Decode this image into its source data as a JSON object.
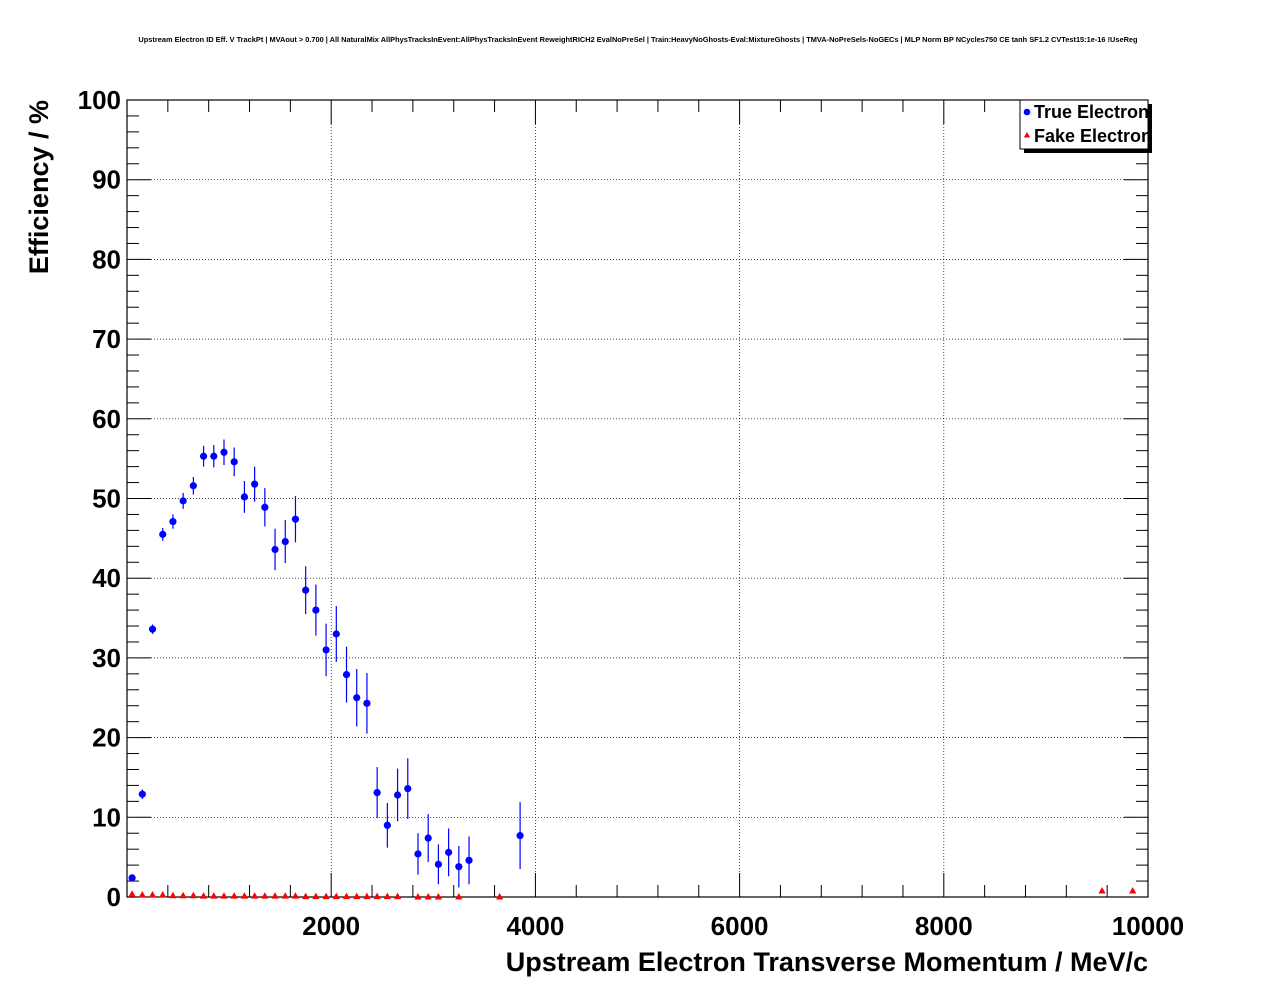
{
  "chart_data": {
    "type": "scatter",
    "title": "Upstream Electron ID Eff. V TrackPt | MVAout > 0.700 | All NaturalMix AllPhysTracksInEvent:AllPhysTracksInEvent ReweightRICH2 EvalNoPreSel | Train:HeavyNoGhosts-Eval:MixtureGhosts | TMVA-NoPreSels-NoGECs | MLP Norm BP NCycles750 CE tanh SF1.2 CVTest15:1e-16 !UseReg",
    "xlabel": "Upstream Electron Transverse Momentum / MeV/c",
    "ylabel": "Efficiency / %",
    "xlim": [
      0,
      10000
    ],
    "ylim": [
      0,
      100
    ],
    "x_tick_labels": [
      "2000",
      "4000",
      "6000",
      "8000",
      "10000"
    ],
    "y_tick_labels": [
      "0",
      "10",
      "20",
      "30",
      "40",
      "50",
      "60",
      "70",
      "80",
      "90",
      "100"
    ],
    "grid": true,
    "legend_position": "top-right",
    "series": [
      {
        "name": "True Electron",
        "color": "#0000ff",
        "marker": "circle",
        "points": [
          {
            "x": 50,
            "y": 2.4,
            "err": 0.4
          },
          {
            "x": 150,
            "y": 12.9,
            "err": 0.6
          },
          {
            "x": 250,
            "y": 33.6,
            "err": 0.6
          },
          {
            "x": 350,
            "y": 45.5,
            "err": 0.8
          },
          {
            "x": 450,
            "y": 47.1,
            "err": 0.9
          },
          {
            "x": 550,
            "y": 49.7,
            "err": 1.0
          },
          {
            "x": 650,
            "y": 51.6,
            "err": 1.1
          },
          {
            "x": 750,
            "y": 55.3,
            "err": 1.3
          },
          {
            "x": 850,
            "y": 55.3,
            "err": 1.4
          },
          {
            "x": 950,
            "y": 55.8,
            "err": 1.6
          },
          {
            "x": 1050,
            "y": 54.6,
            "err": 1.8
          },
          {
            "x": 1150,
            "y": 50.2,
            "err": 2.0
          },
          {
            "x": 1250,
            "y": 51.8,
            "err": 2.2
          },
          {
            "x": 1350,
            "y": 48.9,
            "err": 2.4
          },
          {
            "x": 1450,
            "y": 43.6,
            "err": 2.6
          },
          {
            "x": 1550,
            "y": 44.6,
            "err": 2.7
          },
          {
            "x": 1650,
            "y": 47.4,
            "err": 2.9
          },
          {
            "x": 1750,
            "y": 38.5,
            "err": 3.0
          },
          {
            "x": 1850,
            "y": 36.0,
            "err": 3.2
          },
          {
            "x": 1950,
            "y": 31.0,
            "err": 3.3
          },
          {
            "x": 2050,
            "y": 33.0,
            "err": 3.5
          },
          {
            "x": 2150,
            "y": 27.9,
            "err": 3.5
          },
          {
            "x": 2250,
            "y": 25.0,
            "err": 3.6
          },
          {
            "x": 2350,
            "y": 24.3,
            "err": 3.8
          },
          {
            "x": 2450,
            "y": 13.1,
            "err": 3.2
          },
          {
            "x": 2550,
            "y": 9.0,
            "err": 2.8
          },
          {
            "x": 2650,
            "y": 12.8,
            "err": 3.3
          },
          {
            "x": 2750,
            "y": 13.6,
            "err": 3.8
          },
          {
            "x": 2850,
            "y": 5.4,
            "err": 2.6
          },
          {
            "x": 2950,
            "y": 7.4,
            "err": 3.0
          },
          {
            "x": 3050,
            "y": 4.1,
            "err": 2.5
          },
          {
            "x": 3150,
            "y": 5.6,
            "err": 3.0
          },
          {
            "x": 3250,
            "y": 3.8,
            "err": 2.6
          },
          {
            "x": 3350,
            "y": 4.6,
            "err": 3.0
          },
          {
            "x": 3850,
            "y": 7.7,
            "err": 4.2
          }
        ]
      },
      {
        "name": "Fake Electron",
        "color": "#ff0000",
        "marker": "triangle",
        "points": [
          {
            "x": 50,
            "y": 0.4
          },
          {
            "x": 150,
            "y": 0.3
          },
          {
            "x": 250,
            "y": 0.3
          },
          {
            "x": 350,
            "y": 0.3
          },
          {
            "x": 450,
            "y": 0.2
          },
          {
            "x": 550,
            "y": 0.2
          },
          {
            "x": 650,
            "y": 0.2
          },
          {
            "x": 750,
            "y": 0.15
          },
          {
            "x": 850,
            "y": 0.15
          },
          {
            "x": 950,
            "y": 0.15
          },
          {
            "x": 1050,
            "y": 0.15
          },
          {
            "x": 1150,
            "y": 0.15
          },
          {
            "x": 1250,
            "y": 0.15
          },
          {
            "x": 1350,
            "y": 0.15
          },
          {
            "x": 1450,
            "y": 0.15
          },
          {
            "x": 1550,
            "y": 0.15
          },
          {
            "x": 1650,
            "y": 0.15
          },
          {
            "x": 1750,
            "y": 0.1
          },
          {
            "x": 1850,
            "y": 0.1
          },
          {
            "x": 1950,
            "y": 0.1
          },
          {
            "x": 2050,
            "y": 0.1
          },
          {
            "x": 2150,
            "y": 0.1
          },
          {
            "x": 2250,
            "y": 0.1
          },
          {
            "x": 2350,
            "y": 0.1
          },
          {
            "x": 2450,
            "y": 0.1
          },
          {
            "x": 2550,
            "y": 0.1
          },
          {
            "x": 2650,
            "y": 0.1
          },
          {
            "x": 2850,
            "y": 0.05
          },
          {
            "x": 2950,
            "y": 0.05
          },
          {
            "x": 3050,
            "y": 0.05
          },
          {
            "x": 3250,
            "y": 0.05
          },
          {
            "x": 3650,
            "y": 0.05
          },
          {
            "x": 9550,
            "y": 0.8
          },
          {
            "x": 9850,
            "y": 0.8
          }
        ]
      }
    ]
  }
}
